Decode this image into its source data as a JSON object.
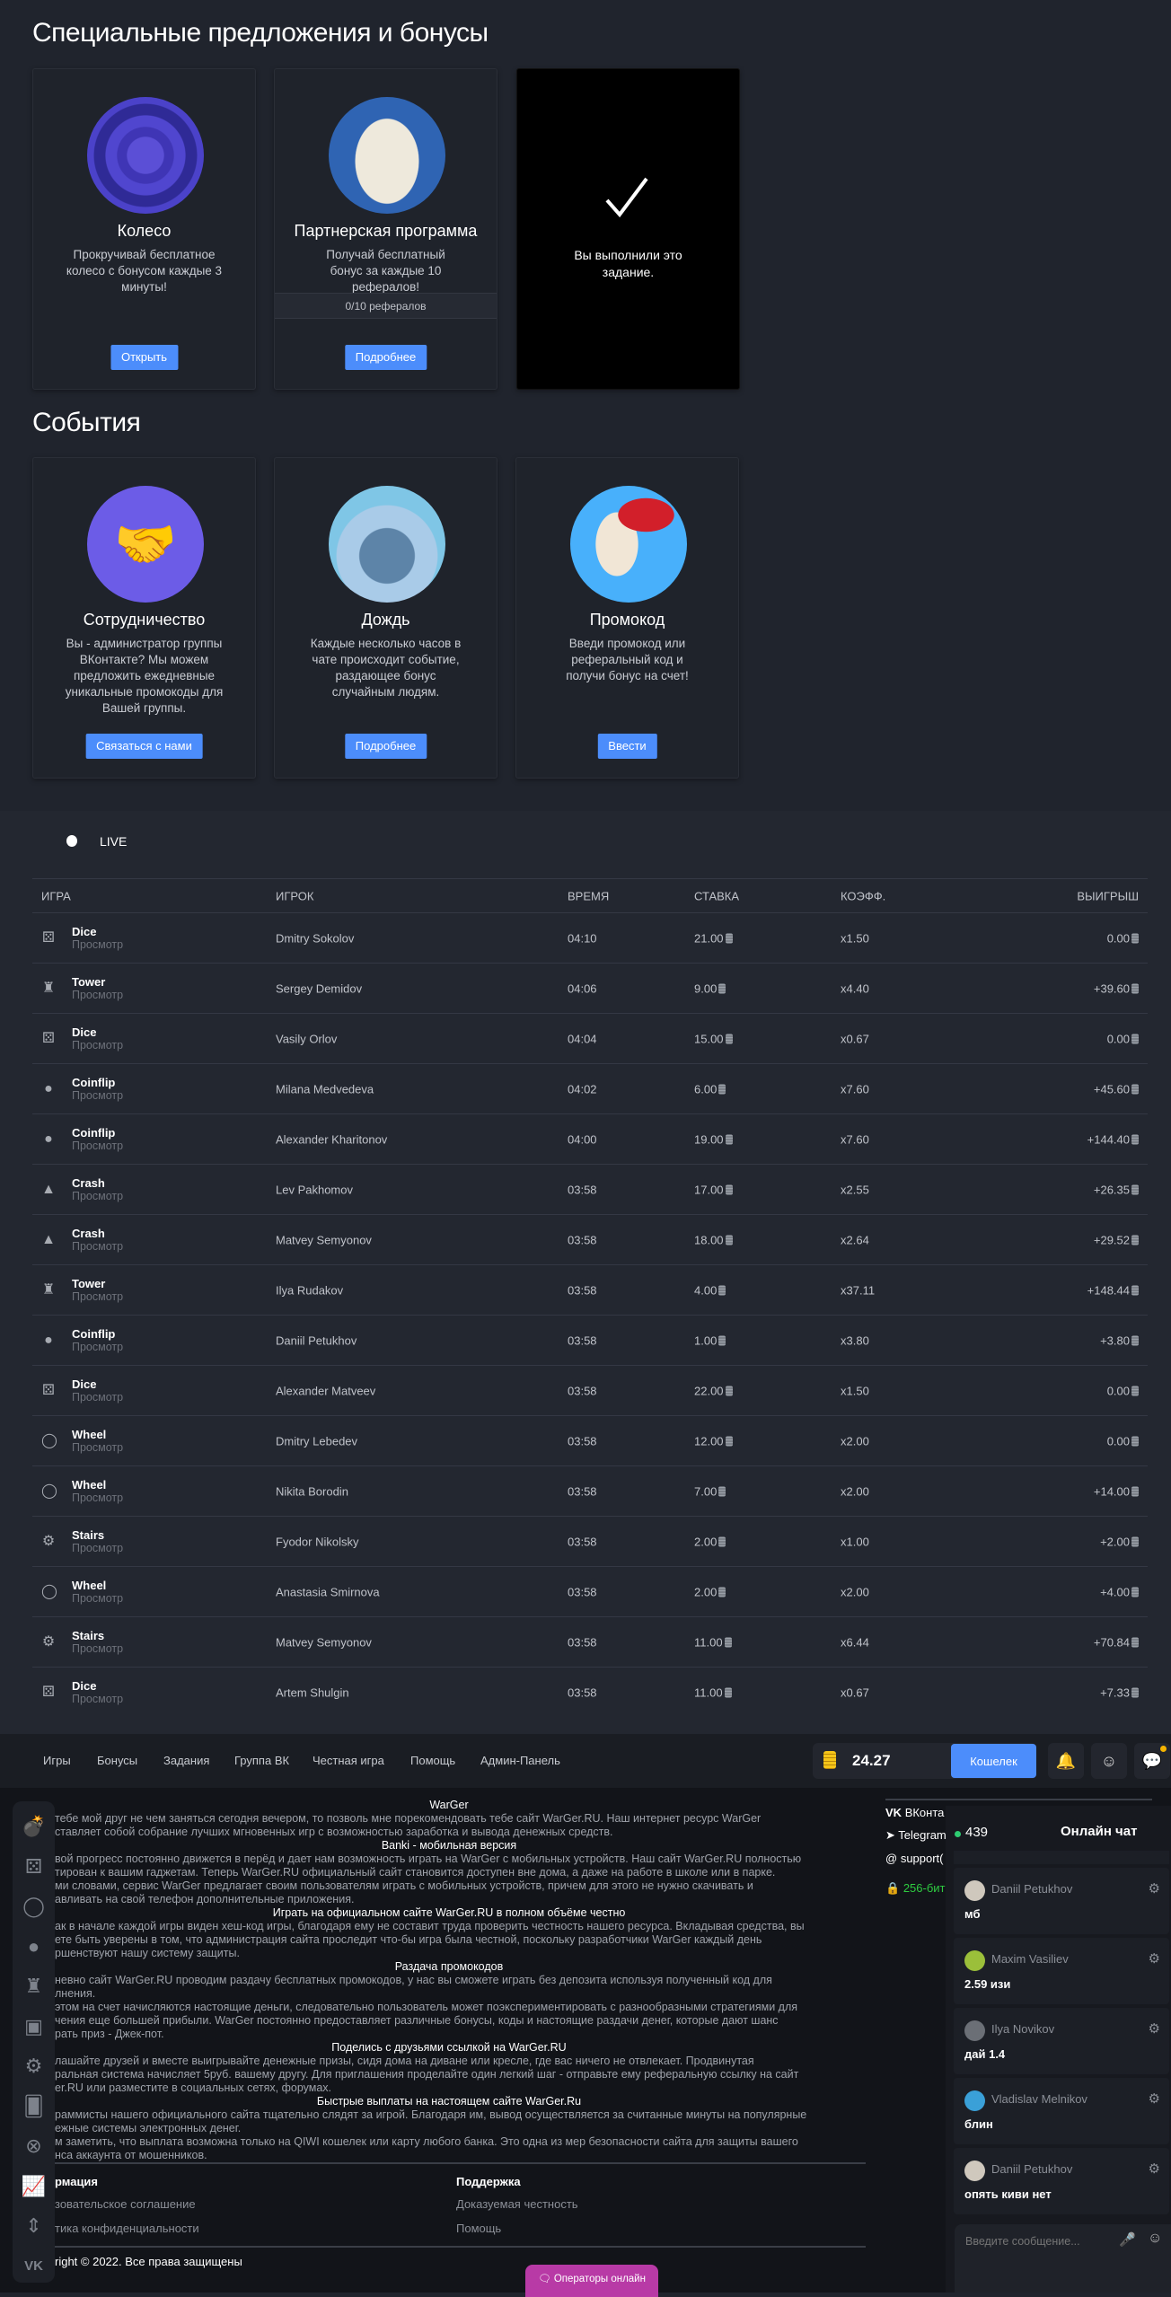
{
  "offers": {
    "title": "Специальные предложения и бонусы",
    "cards": [
      {
        "title": "Колесо",
        "desc": "Прокручивай бесплатное колесо с бонусом каждые 3 минуты!",
        "button": "Открыть",
        "icon": "casino-chip-icon"
      },
      {
        "title": "Партнерская программа",
        "desc": "Получай бесплатный бонус за каждые 10 рефералов!",
        "progress": "0/10 рефералов",
        "button": "Подробнее",
        "icon": "money-bag-icon"
      },
      {
        "done_text": "Вы выполнили это задание.",
        "icon": "checkmark-icon"
      }
    ]
  },
  "events": {
    "title": "События",
    "cards": [
      {
        "title": "Сотрудничество",
        "desc": "Вы - администратор группы ВКонтакте? Мы можем предложить ежедневные уникальные промокоды для Вашей группы.",
        "button": "Связаться с нами",
        "icon": "handshake-icon"
      },
      {
        "title": "Дождь",
        "desc": "Каждые несколько часов в чате происходит событие, раздающее бонус случайным людям.",
        "button": "Подробнее",
        "icon": "rain-cloud-icon"
      },
      {
        "title": "Промокод",
        "desc": "Введи промокод или реферальный код и получи бонус на счет!",
        "button": "Ввести",
        "icon": "promo-megaphone-icon"
      }
    ]
  },
  "live": {
    "label": "LIVE",
    "headers": [
      "ИГРА",
      "ИГРОК",
      "ВРЕМЯ",
      "СТАВКА",
      "КОЭФФ.",
      "ВЫИГРЫШ"
    ],
    "view_label": "Просмотр",
    "rows": [
      {
        "game": "Dice",
        "player": "Dmitry Sokolov",
        "time": "04:10",
        "bet": "21.00",
        "coef": "x1.50",
        "win": "0.00"
      },
      {
        "game": "Tower",
        "player": "Sergey Demidov",
        "time": "04:06",
        "bet": "9.00",
        "coef": "x4.40",
        "win": "+39.60"
      },
      {
        "game": "Dice",
        "player": "Vasily Orlov",
        "time": "04:04",
        "bet": "15.00",
        "coef": "x0.67",
        "win": "0.00"
      },
      {
        "game": "Coinflip",
        "player": "Milana Medvedeva",
        "time": "04:02",
        "bet": "6.00",
        "coef": "x7.60",
        "win": "+45.60"
      },
      {
        "game": "Coinflip",
        "player": "Alexander Kharitonov",
        "time": "04:00",
        "bet": "19.00",
        "coef": "x7.60",
        "win": "+144.40"
      },
      {
        "game": "Crash",
        "player": "Lev Pakhomov",
        "time": "03:58",
        "bet": "17.00",
        "coef": "x2.55",
        "win": "+26.35"
      },
      {
        "game": "Crash",
        "player": "Matvey Semyonov",
        "time": "03:58",
        "bet": "18.00",
        "coef": "x2.64",
        "win": "+29.52"
      },
      {
        "game": "Tower",
        "player": "Ilya Rudakov",
        "time": "03:58",
        "bet": "4.00",
        "coef": "x37.11",
        "win": "+148.44"
      },
      {
        "game": "Coinflip",
        "player": "Daniil Petukhov",
        "time": "03:58",
        "bet": "1.00",
        "coef": "x3.80",
        "win": "+3.80"
      },
      {
        "game": "Dice",
        "player": "Alexander Matveev",
        "time": "03:58",
        "bet": "22.00",
        "coef": "x1.50",
        "win": "0.00"
      },
      {
        "game": "Wheel",
        "player": "Dmitry Lebedev",
        "time": "03:58",
        "bet": "12.00",
        "coef": "x2.00",
        "win": "0.00"
      },
      {
        "game": "Wheel",
        "player": "Nikita Borodin",
        "time": "03:58",
        "bet": "7.00",
        "coef": "x2.00",
        "win": "+14.00"
      },
      {
        "game": "Stairs",
        "player": "Fyodor Nikolsky",
        "time": "03:58",
        "bet": "2.00",
        "coef": "x1.00",
        "win": "+2.00"
      },
      {
        "game": "Wheel",
        "player": "Anastasia Smirnova",
        "time": "03:58",
        "bet": "2.00",
        "coef": "x2.00",
        "win": "+4.00"
      },
      {
        "game": "Stairs",
        "player": "Matvey Semyonov",
        "time": "03:58",
        "bet": "11.00",
        "coef": "x6.44",
        "win": "+70.84"
      },
      {
        "game": "Dice",
        "player": "Artem Shulgin",
        "time": "03:58",
        "bet": "11.00",
        "coef": "x0.67",
        "win": "+7.33"
      }
    ]
  },
  "nav": {
    "items": [
      "Игры",
      "Бонусы",
      "Задания",
      "Группа ВК",
      "Честная игра",
      "Помощь",
      "Админ-Панель"
    ],
    "balance": "24.27",
    "wallet_button": "Кошелек"
  },
  "about": [
    {
      "h": "WarGer"
    },
    {
      "p": "тебе мой друг не чем заняться сегодня вечером, то позволь мне порекомендовать тебе сайт WarGer.RU. Наш интернет ресурс WarGer"
    },
    {
      "p": "ставляет собой собрание лучших мгновенных игр с возможностью заработка и вывода денежных средств."
    },
    {
      "h": "Banki - мобильная версия"
    },
    {
      "p": "вой прогресс постоянно движется в перёд и дает нам возможность играть на WarGer с мобильных устройств. Наш сайт WarGer.RU полностью"
    },
    {
      "p": "тирован к вашим гаджетам. Теперь WarGer.RU официальный сайт становится доступен вне дома, а даже на работе в школе или в парке."
    },
    {
      "p": "ми словами, сервис WarGer предлагает своим пользователям играть с мобильных устройств, причем для этого не нужно скачивать и"
    },
    {
      "p": "авливать на свой телефон дополнительные приложения."
    },
    {
      "h": "Играть на официальном сайте WarGer.RU в полном объёме честно"
    },
    {
      "p": "ак в начале каждой игры виден хеш-код игры, благодаря ему не составит труда проверить честность нашего ресурса. Вкладывая средства, вы"
    },
    {
      "p": "ете быть уверены в том, что администрация сайта проследит что-бы игра была честной, поскольку разработчики WarGer каждый день"
    },
    {
      "p": "ршенствуют нашу систему защиты."
    },
    {
      "h": "Раздача промокодов"
    },
    {
      "p": "невно сайт WarGer.RU проводим раздачу бесплатных промокодов, у нас вы сможете играть без депозита используя полученный код для"
    },
    {
      "p": "лнения."
    },
    {
      "p": "этом на счет начисляются настоящие деньги, следовательно пользователь может поэкспериментировать с разнообразными стратегиями для"
    },
    {
      "p": "чения еще большей прибыли. WarGer постоянно предоставляет различные бонусы, коды и настоящие раздачи денег, которые дают шанс"
    },
    {
      "p": "рать приз - Джек-пот."
    },
    {
      "h": "Поделись с друзьями ссылкой на WarGer.RU"
    },
    {
      "p": "лашайте друзей и вместе выигрывайте денежные призы, сидя дома на диване или кресле, где вас ничего не отвлекает. Продвинутая"
    },
    {
      "p": "ральная система начисляет 5руб. вашему другу. Для приглашения проделайте один легкий шаг - отправьте ему реферальную ссылку на сайт"
    },
    {
      "p": "er.RU или разместите в социальных сетях, форумах."
    },
    {
      "h": "Быстрые выплаты на настоящем сайте WarGer.Ru"
    },
    {
      "p": "раммисты нашего официального сайта тщательно слядят за игрой. Благодаря им, вывод осуществляется за считанные минуты на популярные"
    },
    {
      "p": "ежные системы электронных денег."
    },
    {
      "p": "м заметить, что выплата возможна только на QIWI кошелек или карту любого банка. Это одна из мер безопасности сайта для защиты вашего"
    },
    {
      "p": "нса аккаунта от мошенников."
    }
  ],
  "footer": {
    "info_title": "рмация",
    "info_links": [
      "зовательское соглашение",
      "тика конфиденциальности"
    ],
    "support_title": "Поддержка",
    "support_links": [
      "Доказуемая честность",
      "Помощь"
    ],
    "copyright": "right © 2022. Все права защищены",
    "operators_button": "Операторы онлайн"
  },
  "contacts": {
    "vk": "ВКонта",
    "telegram": "Telegram",
    "support": "support(",
    "ssl": "256-бит",
    "ssl_color": "#2ecc40"
  },
  "chat": {
    "online": "439",
    "title": "Онлайн чат",
    "placeholder": "Введите сообщение...",
    "messages": [
      {
        "name": "Daniil Petukhov",
        "text": "мб"
      },
      {
        "name": "Maxim Vasiliev",
        "text": "2.59 изи"
      },
      {
        "name": "Ilya Novikov",
        "text": "дай 1.4"
      },
      {
        "name": "Vladislav Melnikov",
        "text": "блин"
      },
      {
        "name": "Daniil Petukhov",
        "text": "опять киви нет"
      }
    ]
  },
  "colors": {
    "accent": "#4c8dfb",
    "operators": "#b83aa6",
    "online_dot": "#2ecc71"
  }
}
